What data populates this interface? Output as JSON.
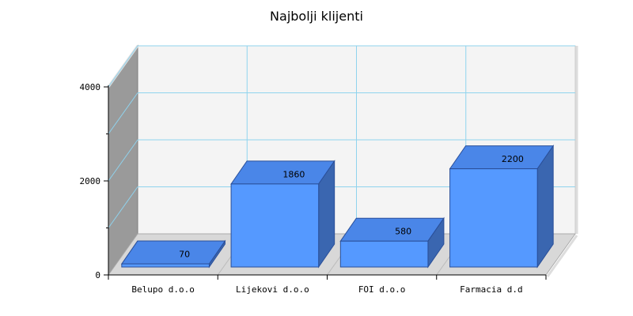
{
  "chart_data": {
    "type": "bar",
    "title": "Najbolji klijenti",
    "xlabel": "",
    "ylabel": "",
    "categories": [
      "Belupo d.o.o",
      "Lijekovi d.o.o",
      "FOI d.o.o",
      "Farmacia d.d"
    ],
    "values": [
      70,
      1860,
      580,
      2200
    ],
    "value_labels": [
      "70",
      "1860",
      "580",
      "2200"
    ],
    "ylim": [
      0,
      4000
    ],
    "yticks": [
      0,
      2000,
      4000
    ],
    "ytick_labels": [
      "0",
      "2000",
      "4000"
    ],
    "grid": true,
    "three_d": true,
    "legend": "none"
  },
  "colors": {
    "bar_front": "#5599ff",
    "bar_top": "#4a86e8",
    "bar_side": "#3a66b0",
    "bar_edge": "#2a4f99",
    "grid": "#8fd3ee",
    "back_wall": "#f4f4f4",
    "left_wall": "#9a9a9a",
    "floor": "#d8d8d8"
  }
}
